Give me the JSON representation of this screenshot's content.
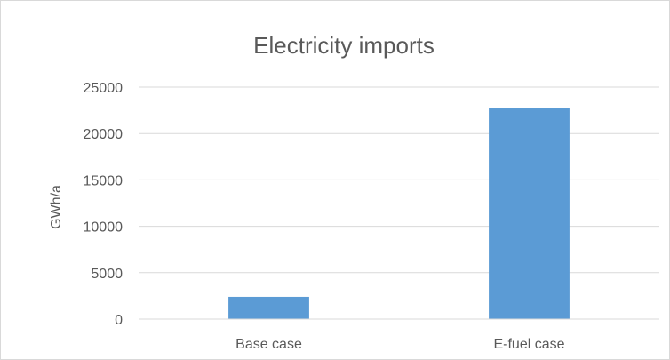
{
  "chart_data": {
    "type": "bar",
    "title": "Electricity imports",
    "xlabel": "",
    "ylabel": "GWh/a",
    "categories": [
      "Base case",
      "E-fuel case"
    ],
    "values": [
      2400,
      22700
    ],
    "ylim": [
      0,
      25000
    ],
    "yticks": [
      0,
      5000,
      10000,
      15000,
      20000,
      25000
    ],
    "grid": true,
    "legend": "none",
    "bar_color": "#5B9BD5",
    "grid_color": "#D9D9D9"
  }
}
